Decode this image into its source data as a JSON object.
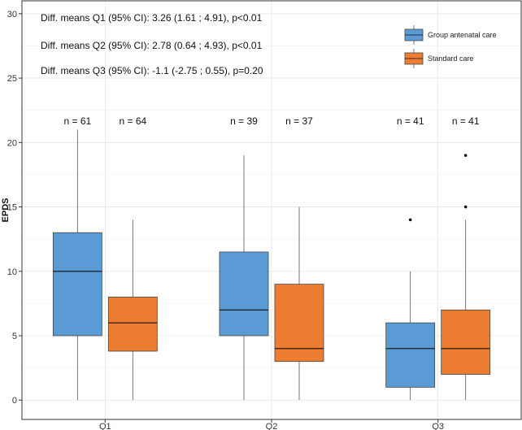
{
  "chart_data": {
    "type": "box",
    "ylabel": "EPDS",
    "xlabel": "",
    "ylim": [
      -1.5,
      31
    ],
    "yticks": [
      0,
      5,
      10,
      15,
      20,
      25,
      30
    ],
    "categories": [
      "Q1",
      "Q2",
      "Q3"
    ],
    "series": [
      {
        "name": "Group antenatal care",
        "color": "#5B9BD5",
        "boxes": [
          {
            "min": 0,
            "q1": 5,
            "median": 10,
            "q3": 13,
            "max": 21,
            "outliers": []
          },
          {
            "min": 0,
            "q1": 5,
            "median": 7,
            "q3": 11.5,
            "max": 19,
            "outliers": []
          },
          {
            "min": 0,
            "q1": 1,
            "median": 4,
            "q3": 6,
            "max": 10,
            "outliers": [
              14
            ]
          }
        ]
      },
      {
        "name": "Standard care",
        "color": "#ED7D31",
        "boxes": [
          {
            "min": 0,
            "q1": 3.8,
            "median": 6,
            "q3": 8,
            "max": 14,
            "outliers": []
          },
          {
            "min": 0,
            "q1": 3,
            "median": 4,
            "q3": 9,
            "max": 15,
            "outliers": []
          },
          {
            "min": 0,
            "q1": 2,
            "median": 4,
            "q3": 7,
            "max": 14,
            "outliers": [
              15,
              19
            ]
          }
        ]
      }
    ],
    "n_labels": [
      [
        "n = 61",
        "n = 64"
      ],
      [
        "n = 39",
        "n = 37"
      ],
      [
        "n = 41",
        "n = 41"
      ]
    ],
    "annotations": [
      "Diff. means Q1 (95% CI): 3.26 (1.61 ; 4.91), p<0.01",
      "Diff. means Q2 (95% CI): 2.78 (0.64 ; 4.93), p<0.01",
      "Diff. means Q3 (95% CI): -1.1 (-2.75 ; 0.55), p=0.20"
    ],
    "legend_position": "top-right",
    "grid": true
  }
}
